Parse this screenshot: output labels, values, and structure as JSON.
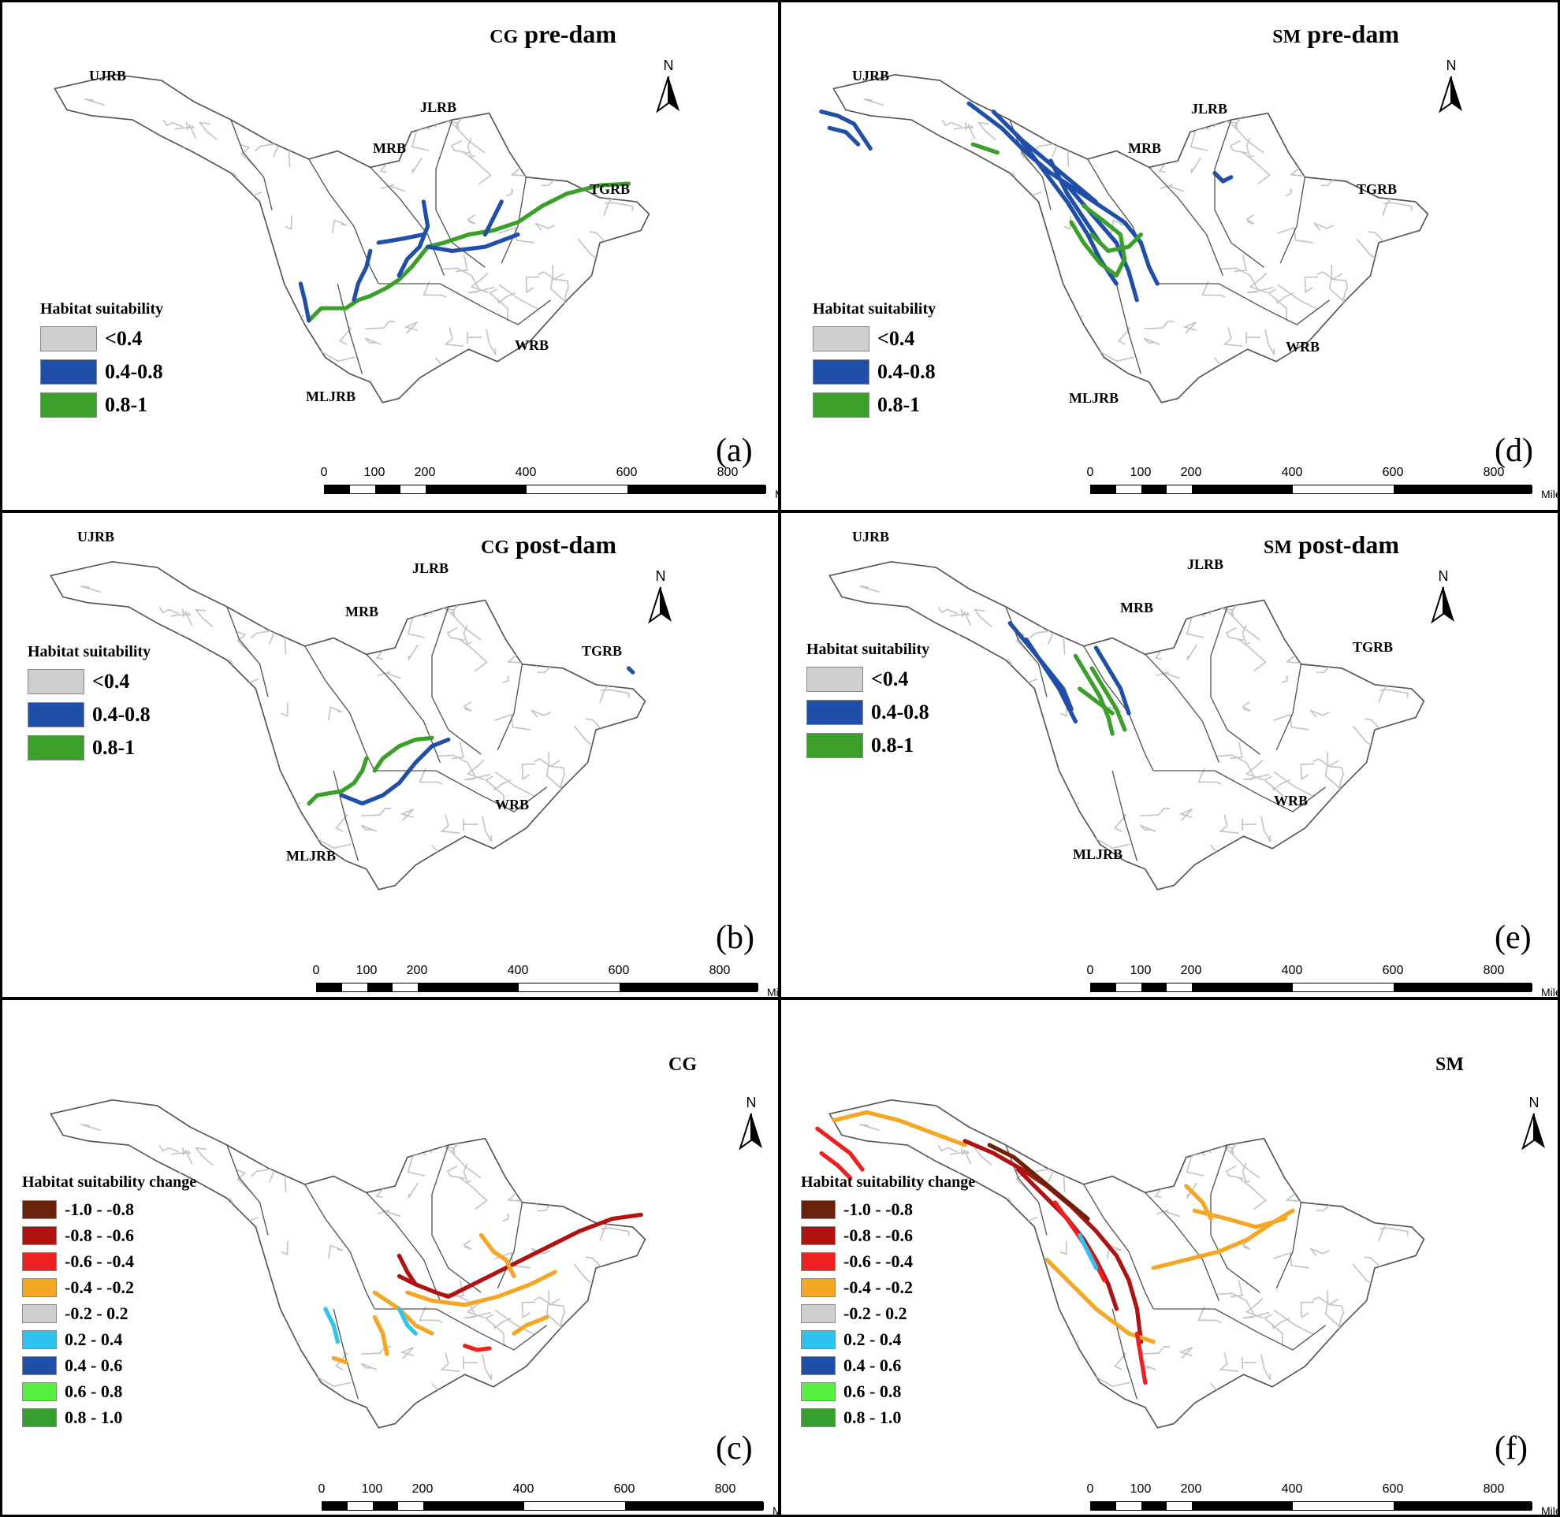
{
  "figure": {
    "panels": [
      {
        "id": "a",
        "model": "CG",
        "period": "pre-dam",
        "letter": "(a)",
        "legend": {
          "title": "Habitat suitability",
          "items": [
            "<0.4",
            "0.4-0.8",
            "0.8-1"
          ]
        }
      },
      {
        "id": "d",
        "model": "SM",
        "period": "pre-dam",
        "letter": "(d)",
        "legend": {
          "title": "Habitat suitability",
          "items": [
            "<0.4",
            "0.4-0.8",
            "0.8-1"
          ]
        }
      },
      {
        "id": "b",
        "model": "CG",
        "period": "post-dam",
        "letter": "(b)",
        "legend": {
          "title": "Habitat suitability",
          "items": [
            "<0.4",
            "0.4-0.8",
            "0.8-1"
          ]
        }
      },
      {
        "id": "e",
        "model": "SM",
        "period": "post-dam",
        "letter": "(e)",
        "legend": {
          "title": "Habitat suitability",
          "items": [
            "<0.4",
            "0.4-0.8",
            "0.8-1"
          ]
        }
      },
      {
        "id": "c",
        "model": "CG",
        "period": "",
        "letter": "(c)",
        "legend": {
          "title": "Habitat suitability change",
          "items": [
            "-1.0 - -0.8",
            "-0.8 - -0.6",
            "-0.6 - -0.4",
            "-0.4 - -0.2",
            "-0.2 -  0.2",
            "0.2 -  0.4",
            "0.4 -  0.6",
            "0.6 -  0.8",
            "0.8 -  1.0"
          ]
        }
      },
      {
        "id": "f",
        "model": "SM",
        "period": "",
        "letter": "(f)",
        "legend": {
          "title": "Habitat suitability change",
          "items": [
            "-1.0 - -0.8",
            "-0.8 - -0.6",
            "-0.6 - -0.4",
            "-0.4 - -0.2",
            "-0.2 -  0.2",
            "0.2 -  0.4",
            "0.4 -  0.6",
            "0.6 -  0.8",
            "0.8 -  1.0"
          ]
        }
      }
    ],
    "basins": [
      "UJRB",
      "JLRB",
      "MRB",
      "TGRB",
      "WRB",
      "MLJRB"
    ],
    "north_label": "N",
    "scale": {
      "ticks": [
        "0",
        "100",
        "200",
        "400",
        "600",
        "800"
      ],
      "unit": "Miles"
    },
    "colors": {
      "suitability": [
        "#cfcfcf",
        "#1f4fa8",
        "#3aa02a"
      ],
      "change": [
        "#6b2208",
        "#b01212",
        "#ef2020",
        "#f5a623",
        "#cfcfcf",
        "#2ec4f0",
        "#1f4fa8",
        "#58f040",
        "#36a02e"
      ],
      "river": "#c4c4c4",
      "outline": "#555555"
    }
  }
}
